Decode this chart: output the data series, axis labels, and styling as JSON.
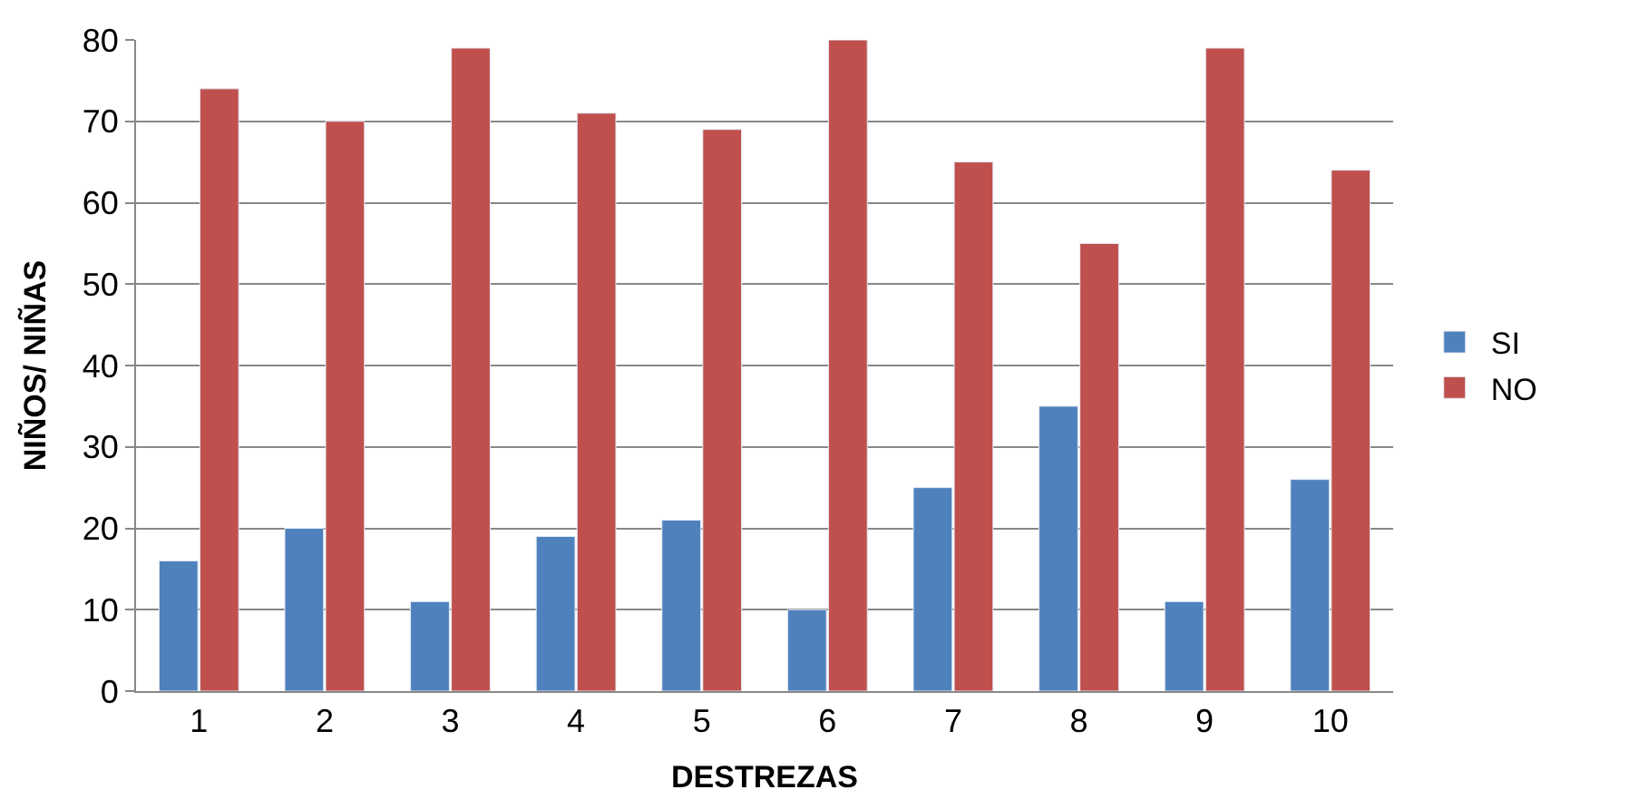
{
  "chart_data": {
    "type": "bar",
    "xlabel": "DESTREZAS",
    "ylabel": "NIÑOS/ NIÑAS",
    "categories": [
      "1",
      "2",
      "3",
      "4",
      "5",
      "6",
      "7",
      "8",
      "9",
      "10"
    ],
    "series": [
      {
        "name": "SI",
        "color": "#4f81bd",
        "values": [
          16,
          20,
          11,
          19,
          21,
          10,
          25,
          35,
          11,
          26
        ]
      },
      {
        "name": "NO",
        "color": "#c0504d",
        "values": [
          74,
          70,
          79,
          71,
          69,
          80,
          65,
          55,
          79,
          64
        ]
      }
    ],
    "ylim": [
      0,
      80
    ],
    "yticks": [
      0,
      10,
      20,
      30,
      40,
      50,
      60,
      70,
      80
    ],
    "grid": "y",
    "legend": "right"
  }
}
